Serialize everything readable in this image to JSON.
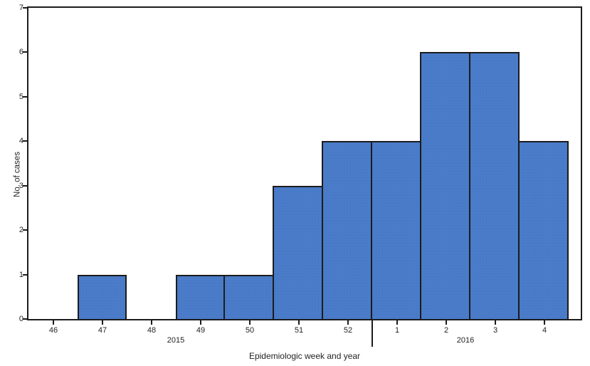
{
  "chart_data": {
    "type": "bar",
    "title": "",
    "xlabel": "Epidemiologic week and year",
    "ylabel": "No. of cases",
    "categories": [
      "46",
      "47",
      "48",
      "49",
      "50",
      "51",
      "52",
      "1",
      "2",
      "3",
      "4"
    ],
    "values": [
      0,
      1,
      0,
      1,
      1,
      3,
      4,
      4,
      6,
      6,
      4
    ],
    "ylim": [
      0,
      7
    ],
    "yticks": [
      0,
      1,
      2,
      3,
      4,
      5,
      6,
      7
    ],
    "year_groups": [
      {
        "label": "2015",
        "start_index": 0,
        "end_index": 6,
        "label_center_index": 3.0
      },
      {
        "label": "2016",
        "start_index": 7,
        "end_index": 10,
        "label_center_index": 8.9
      }
    ],
    "divider_after_index": 6,
    "bar_color": "#4a7cc9",
    "bar_border_color": "#1c1c1c",
    "axis_color": "#1c1c1c",
    "text_color": "#231f20",
    "grid": false,
    "legend_position": "none"
  }
}
